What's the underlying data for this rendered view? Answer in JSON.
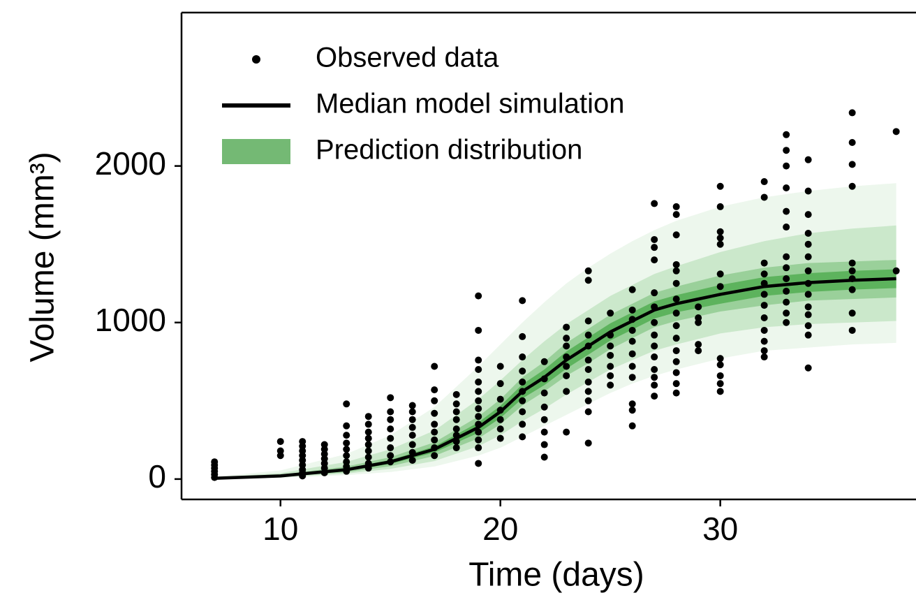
{
  "chart_data": {
    "type": "scatter",
    "xlabel": "Time (days)",
    "ylabel": "Volume (mm³)",
    "xlim": [
      5.5,
      38.9
    ],
    "ylim": [
      -130,
      2980
    ],
    "xticks": [
      10,
      20,
      30
    ],
    "yticks": [
      0,
      1000,
      2000
    ],
    "grid": false,
    "legend": "upper left",
    "series": [
      {
        "name": "Observed data",
        "type": "scatter",
        "color": "#000000",
        "groups": [
          {
            "x": 7,
            "values": [
              10,
              30,
              50,
              70,
              90,
              110
            ]
          },
          {
            "x": 10,
            "values": [
              150,
              180,
              240
            ]
          },
          {
            "x": 11,
            "values": [
              20,
              40,
              60,
              90,
              120,
              150,
              180,
              210,
              240
            ]
          },
          {
            "x": 12,
            "values": [
              40,
              70,
              100,
              130,
              160,
              190,
              220
            ]
          },
          {
            "x": 13,
            "values": [
              50,
              80,
              110,
              150,
              190,
              230,
              280,
              340,
              480
            ]
          },
          {
            "x": 14,
            "values": [
              70,
              100,
              140,
              180,
              220,
              260,
              300,
              350,
              400
            ]
          },
          {
            "x": 15,
            "values": [
              110,
              150,
              200,
              260,
              320,
              380,
              430,
              520
            ]
          },
          {
            "x": 16,
            "values": [
              120,
              170,
              220,
              280,
              330,
              380,
              430,
              470
            ]
          },
          {
            "x": 17,
            "values": [
              150,
              200,
              250,
              300,
              350,
              420,
              500,
              570,
              720
            ]
          },
          {
            "x": 18,
            "values": [
              200,
              240,
              280,
              320,
              380,
              430,
              480,
              540
            ]
          },
          {
            "x": 19,
            "values": [
              100,
              200,
              250,
              300,
              350,
              400,
              450,
              500,
              560,
              620,
              700,
              760,
              950,
              1170
            ]
          },
          {
            "x": 20,
            "values": [
              260,
              320,
              380,
              440,
              510,
              610,
              720
            ]
          },
          {
            "x": 21,
            "values": [
              270,
              350,
              430,
              500,
              560,
              620,
              690,
              780,
              910,
              1140
            ]
          },
          {
            "x": 22,
            "values": [
              140,
              220,
              300,
              380,
              460,
              550,
              640,
              750
            ]
          },
          {
            "x": 23,
            "values": [
              300,
              560,
              660,
              720,
              780,
              850,
              900,
              970
            ]
          },
          {
            "x": 24,
            "values": [
              230,
              430,
              500,
              560,
              620,
              700,
              760,
              850,
              920,
              1010,
              1270,
              1330
            ]
          },
          {
            "x": 25,
            "values": [
              600,
              660,
              720,
              790,
              850,
              920,
              1060
            ]
          },
          {
            "x": 26,
            "values": [
              340,
              440,
              480,
              650,
              720,
              800,
              880,
              950,
              1020,
              1080,
              1210
            ]
          },
          {
            "x": 27,
            "values": [
              530,
              600,
              650,
              700,
              780,
              850,
              920,
              1000,
              1100,
              1190,
              1400,
              1480,
              1530,
              1760
            ]
          },
          {
            "x": 28,
            "values": [
              550,
              610,
              680,
              750,
              820,
              900,
              980,
              1060,
              1150,
              1250,
              1330,
              1370,
              1560,
              1690,
              1740
            ]
          },
          {
            "x": 29,
            "values": [
              820,
              860,
              1000,
              1030,
              1100
            ]
          },
          {
            "x": 30,
            "values": [
              560,
              610,
              660,
              730,
              770,
              1230,
              1310,
              1500,
              1540,
              1580,
              1740,
              1870
            ]
          },
          {
            "x": 32,
            "values": [
              780,
              820,
              880,
              950,
              1030,
              1110,
              1180,
              1250,
              1310,
              1380,
              1800,
              1900
            ]
          },
          {
            "x": 33,
            "values": [
              1000,
              1060,
              1130,
              1200,
              1280,
              1350,
              1420,
              1610,
              1710,
              1860,
              2000,
              2100,
              2200
            ]
          },
          {
            "x": 34,
            "values": [
              710,
              920,
              980,
              1050,
              1100,
              1180,
              1250,
              1330,
              1420,
              1500,
              1570,
              1690,
              1840,
              2040
            ]
          },
          {
            "x": 36,
            "values": [
              950,
              1060,
              1210,
              1280,
              1330,
              1380,
              1870,
              2010,
              2150,
              2340
            ]
          },
          {
            "x": 38,
            "values": [
              1330,
              2220
            ]
          }
        ]
      },
      {
        "name": "Median model simulation",
        "type": "line",
        "color": "#000000",
        "x": [
          7,
          10,
          13,
          15,
          17,
          19,
          20,
          21,
          22,
          23,
          24,
          25,
          26,
          27,
          28,
          30,
          32,
          34,
          36,
          38
        ],
        "values": [
          5,
          20,
          60,
          110,
          190,
          330,
          430,
          560,
          650,
          760,
          850,
          940,
          1010,
          1080,
          1120,
          1180,
          1230,
          1255,
          1270,
          1280
        ]
      },
      {
        "name": "Prediction distribution",
        "type": "band",
        "color": "#74b974",
        "x": [
          7,
          10,
          13,
          15,
          17,
          19,
          20,
          21,
          22,
          23,
          24,
          25,
          26,
          27,
          28,
          30,
          32,
          34,
          36,
          38
        ],
        "bands": [
          {
            "color": "#edf7ed",
            "upper": [
              15,
              55,
              160,
              280,
              460,
              720,
              860,
              1000,
              1130,
              1250,
              1350,
              1440,
              1520,
              1590,
              1650,
              1740,
              1800,
              1840,
              1870,
              1890
            ],
            "lower": [
              2,
              8,
              25,
              45,
              80,
              150,
              200,
              270,
              340,
              410,
              480,
              550,
              610,
              660,
              700,
              770,
              820,
              840,
              860,
              870
            ]
          },
          {
            "color": "#cbe8cb",
            "upper": [
              11,
              38,
              110,
              190,
              310,
              510,
              630,
              760,
              880,
              990,
              1080,
              1170,
              1240,
              1310,
              1360,
              1450,
              1520,
              1570,
              1600,
              1620
            ],
            "lower": [
              3,
              12,
              35,
              65,
              115,
              210,
              280,
              370,
              450,
              540,
              620,
              700,
              760,
              820,
              860,
              930,
              970,
              990,
              1000,
              1010
            ]
          },
          {
            "color": "#9ad09a",
            "upper": [
              8,
              28,
              80,
              140,
              235,
              400,
              510,
              650,
              750,
              870,
              960,
              1050,
              1120,
              1190,
              1230,
              1300,
              1350,
              1380,
              1390,
              1400
            ],
            "lower": [
              4,
              14,
              44,
              82,
              148,
              260,
              350,
              470,
              560,
              660,
              740,
              830,
              900,
              970,
              1010,
              1070,
              1110,
              1140,
              1150,
              1160
            ]
          },
          {
            "color": "#5db35d",
            "upper": [
              6,
              23,
              68,
              122,
              208,
              362,
              468,
              605,
              700,
              815,
              905,
              995,
              1065,
              1135,
              1175,
              1240,
              1290,
              1315,
              1330,
              1340
            ],
            "lower": [
              5,
              17,
              52,
              97,
              170,
              295,
              390,
              515,
              600,
              705,
              795,
              885,
              955,
              1025,
              1065,
              1120,
              1170,
              1195,
              1210,
              1220
            ]
          }
        ]
      }
    ]
  }
}
